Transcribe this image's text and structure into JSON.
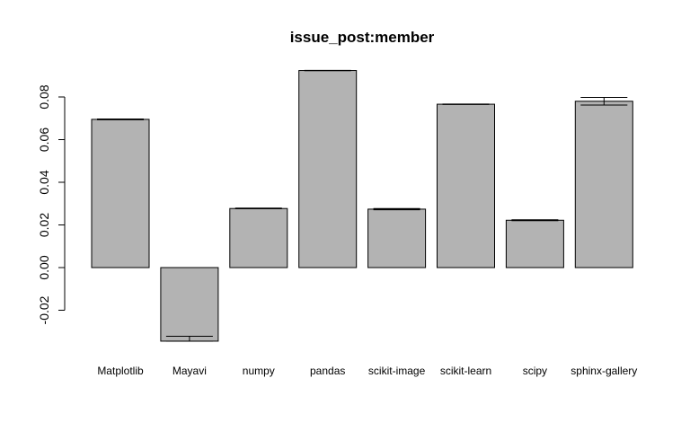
{
  "chart_data": {
    "type": "bar",
    "title": "issue_post:member",
    "xlabel": "",
    "ylabel": "",
    "categories": [
      "Matplotlib",
      "Mayavi",
      "numpy",
      "pandas",
      "scikit-image",
      "scikit-learn",
      "scipy",
      "sphinx-gallery"
    ],
    "values": [
      0.0695,
      -0.0345,
      0.0277,
      0.0924,
      0.0274,
      0.0766,
      0.0222,
      0.078
    ],
    "error_low": [
      0.0693,
      -0.0345,
      0.0276,
      0.0923,
      0.0271,
      0.0765,
      0.022,
      0.0762
    ],
    "error_high": [
      0.0697,
      -0.0322,
      0.0279,
      0.0925,
      0.0277,
      0.0767,
      0.0224,
      0.0798
    ],
    "yticks": [
      "-0.02",
      "0.00",
      "0.02",
      "0.04",
      "0.06",
      "0.08"
    ],
    "ylim": [
      -0.036,
      0.095
    ],
    "grid": false,
    "bar_color": "#b3b3b3"
  }
}
